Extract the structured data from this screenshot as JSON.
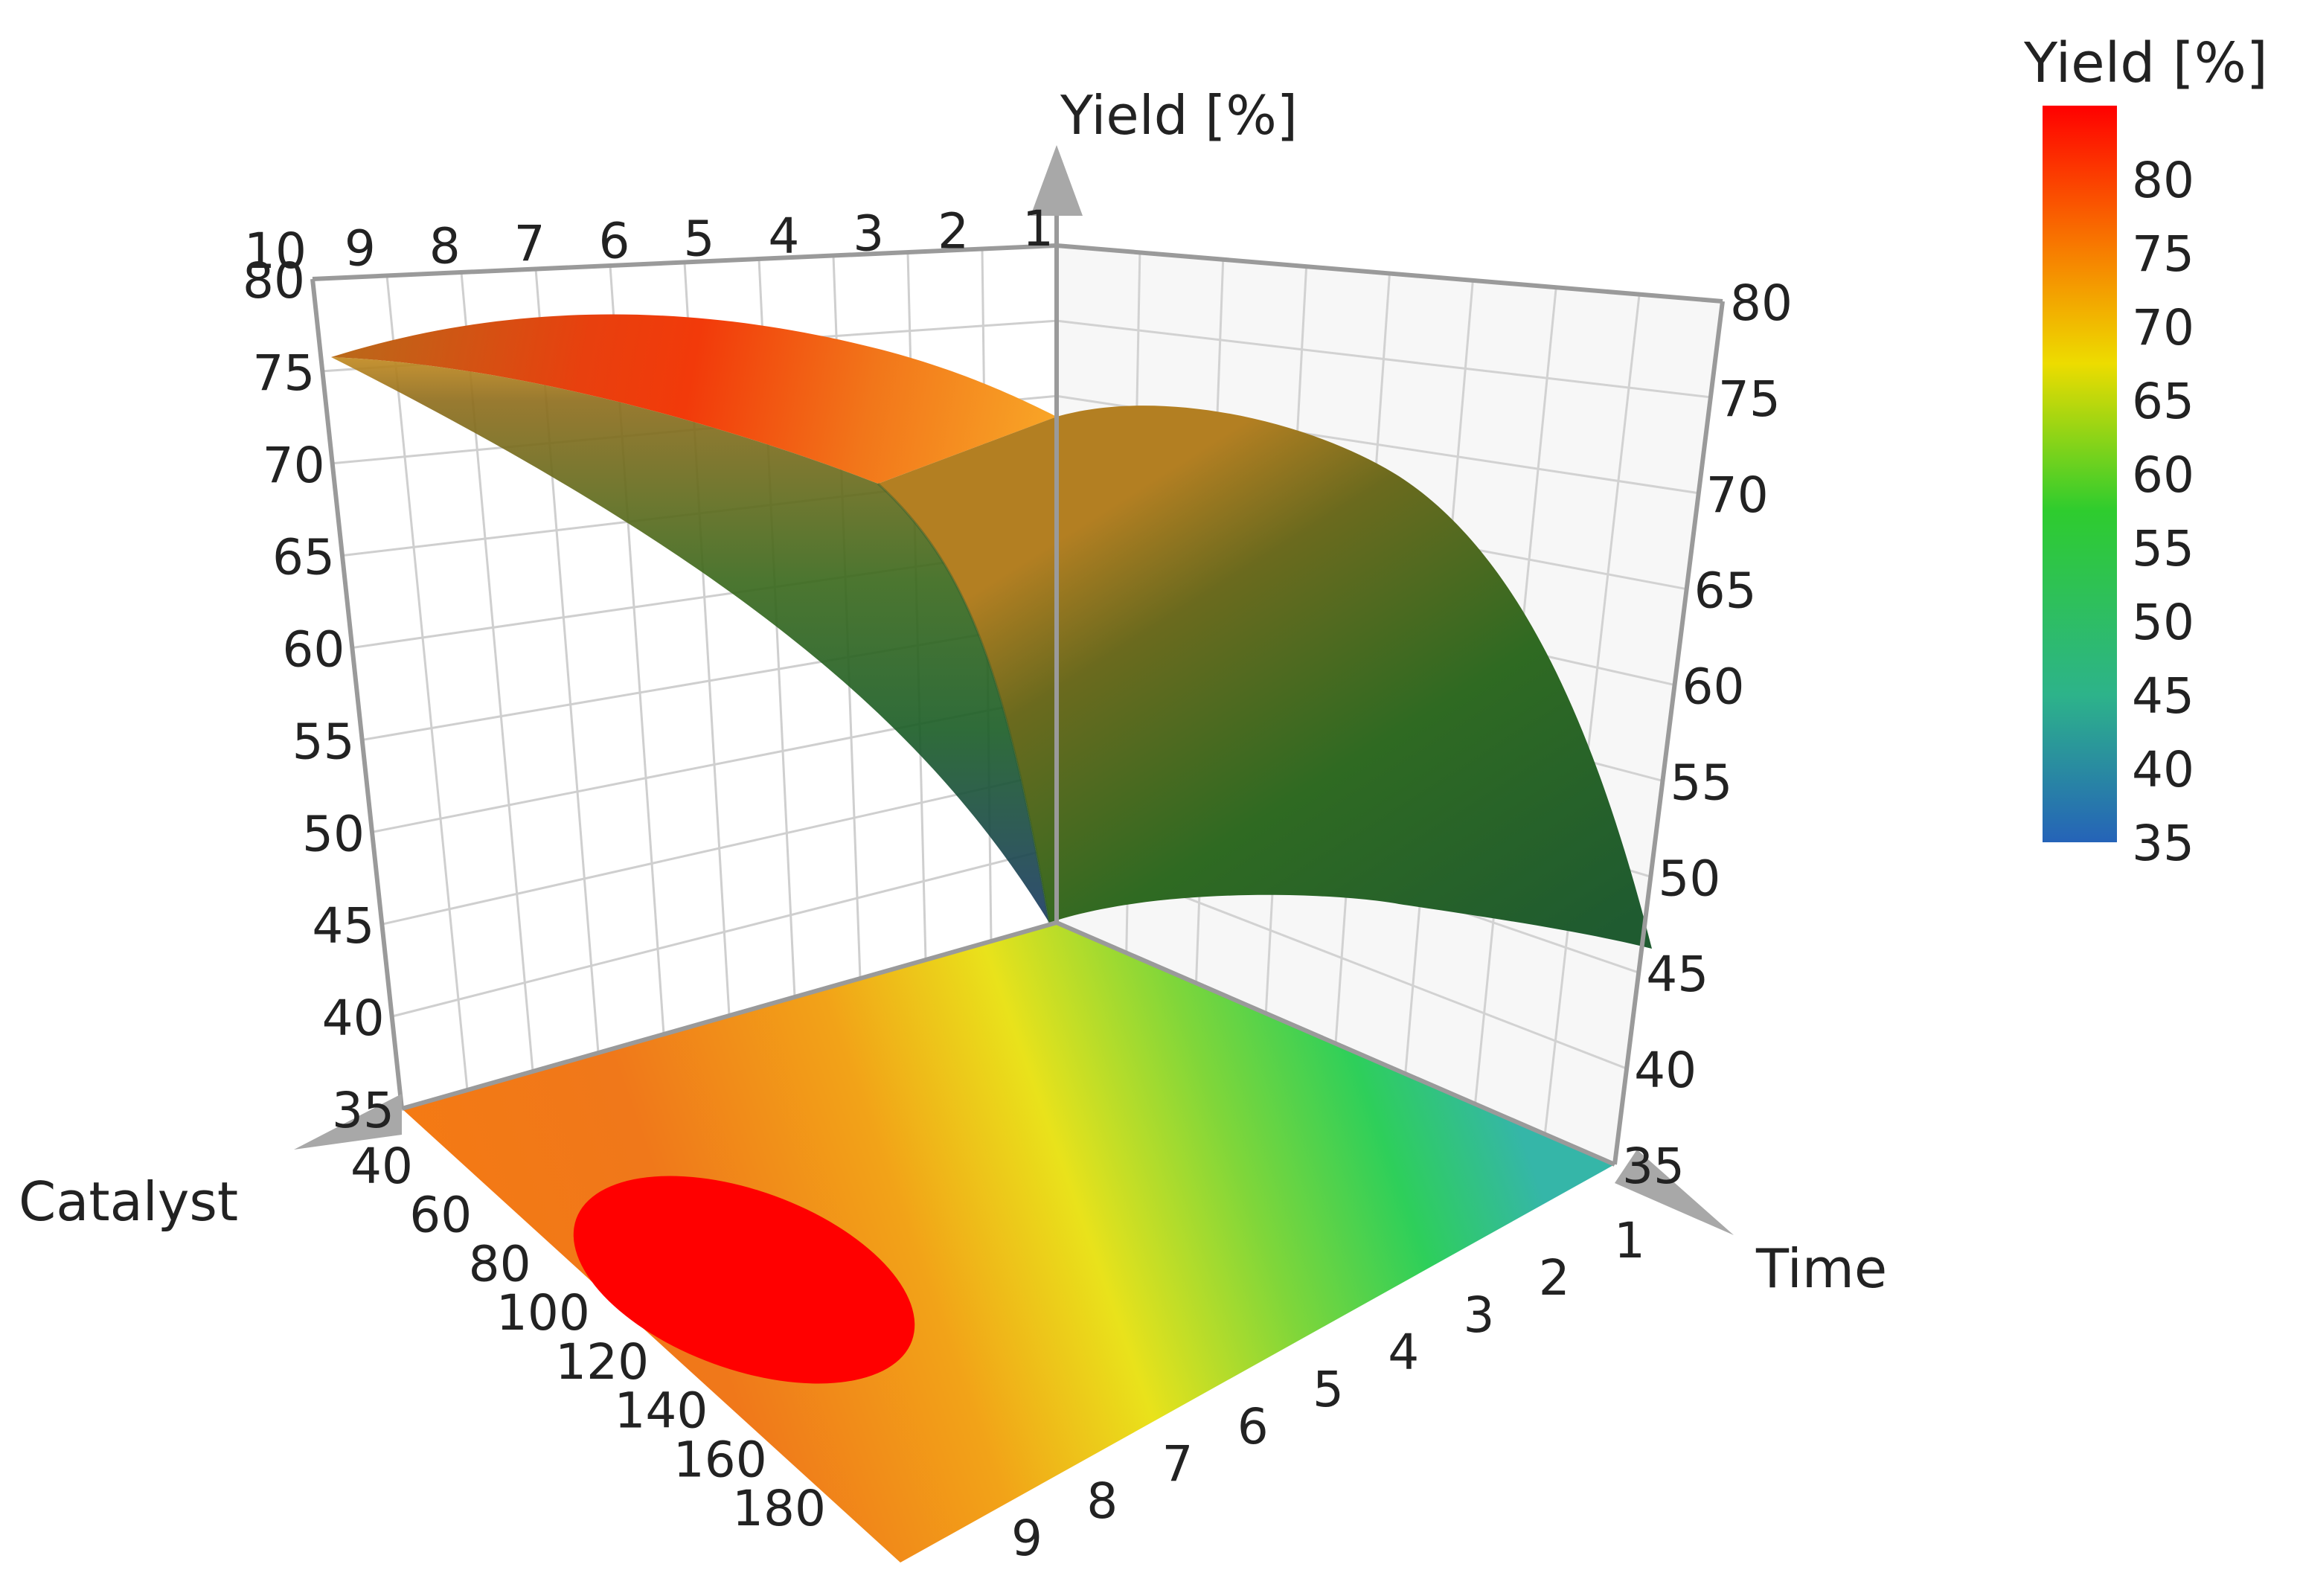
{
  "chart_data": {
    "type": "surface3d",
    "title": "",
    "axes": {
      "z": {
        "label": "Yield [%]",
        "range": [
          35,
          80
        ],
        "ticks": [
          35,
          40,
          45,
          50,
          55,
          60,
          65,
          70,
          75,
          80
        ]
      },
      "catalyst": {
        "label": "Catalyst",
        "range": [
          40,
          180
        ],
        "ticks": [
          40,
          60,
          80,
          100,
          120,
          140,
          160,
          180
        ]
      },
      "time": {
        "label": "Time",
        "range": [
          1,
          10
        ],
        "ticks": [
          1,
          2,
          3,
          4,
          5,
          6,
          7,
          8,
          9
        ],
        "back_ticks": [
          10,
          9,
          8,
          7,
          6,
          5,
          4,
          3,
          2,
          1
        ]
      }
    },
    "surface": {
      "description_points": [
        {
          "catalyst": 40,
          "time": 10,
          "yield": 76
        },
        {
          "catalyst": 40,
          "time": 6,
          "yield": 82
        },
        {
          "catalyst": 40,
          "time": 1,
          "yield": 37
        },
        {
          "catalyst": 110,
          "time": 6,
          "yield": 84
        },
        {
          "catalyst": 180,
          "time": 10,
          "yield": 76
        },
        {
          "catalyst": 180,
          "time": 6,
          "yield": 80
        },
        {
          "catalyst": 180,
          "time": 1,
          "yield": 49
        }
      ]
    },
    "floor_contour": {
      "max_region": {
        "catalyst": [
          80,
          140
        ],
        "time": [
          6,
          9
        ]
      }
    },
    "grid": true,
    "legend": {
      "title": "Yield [%]",
      "position": "top-right",
      "ticks": [
        80,
        75,
        70,
        65,
        60,
        55,
        50,
        45,
        40,
        35
      ],
      "colors": [
        "#ff0000",
        "#f77f00",
        "#eddc00",
        "#2ecc2e",
        "#2db38a",
        "#2563b8"
      ]
    }
  }
}
